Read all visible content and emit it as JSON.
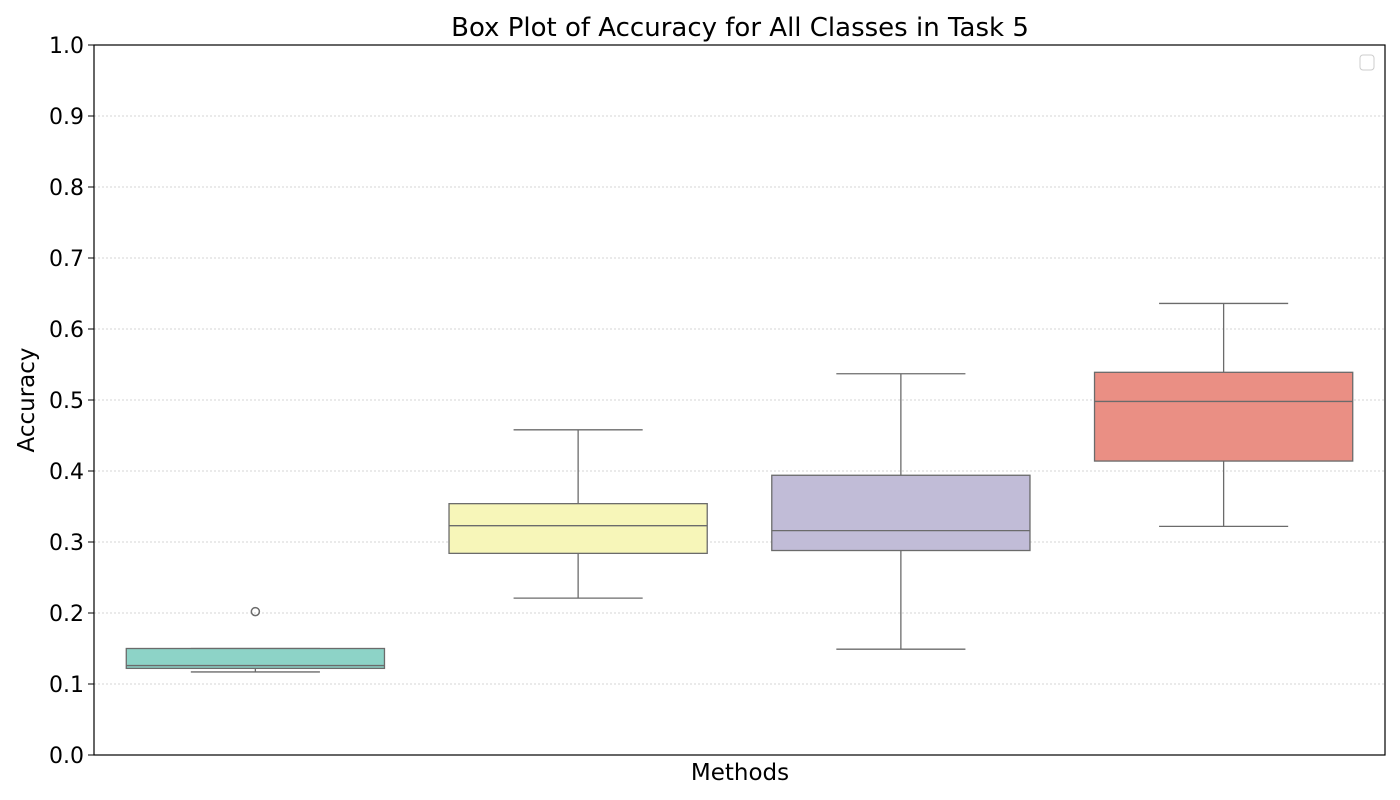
{
  "chart_data": {
    "type": "box",
    "title": "Box Plot of Accuracy for All Classes in Task 5",
    "xlabel": "Methods",
    "ylabel": "Accuracy",
    "ylim": [
      0,
      1
    ],
    "yticks": [
      "0.0",
      "0.1",
      "0.2",
      "0.3",
      "0.4",
      "0.5",
      "0.6",
      "0.7",
      "0.8",
      "0.9",
      "1.0"
    ],
    "grid": "horizontal dotted",
    "legend": "top-right (empty)",
    "boxes": [
      {
        "color": "#8dd3c7",
        "whisker_low": 0.117,
        "q1": 0.122,
        "median": 0.126,
        "q3": 0.15,
        "whisker_high": 0.15,
        "outliers": [
          0.202
        ]
      },
      {
        "color": "#f7f6b9",
        "whisker_low": 0.221,
        "q1": 0.284,
        "median": 0.323,
        "q3": 0.354,
        "whisker_high": 0.458,
        "outliers": []
      },
      {
        "color": "#c1bcd7",
        "whisker_low": 0.149,
        "q1": 0.288,
        "median": 0.316,
        "q3": 0.394,
        "whisker_high": 0.537,
        "outliers": []
      },
      {
        "color": "#ea8f84",
        "whisker_low": 0.322,
        "q1": 0.414,
        "median": 0.498,
        "q3": 0.539,
        "whisker_high": 0.636,
        "outliers": []
      }
    ]
  }
}
